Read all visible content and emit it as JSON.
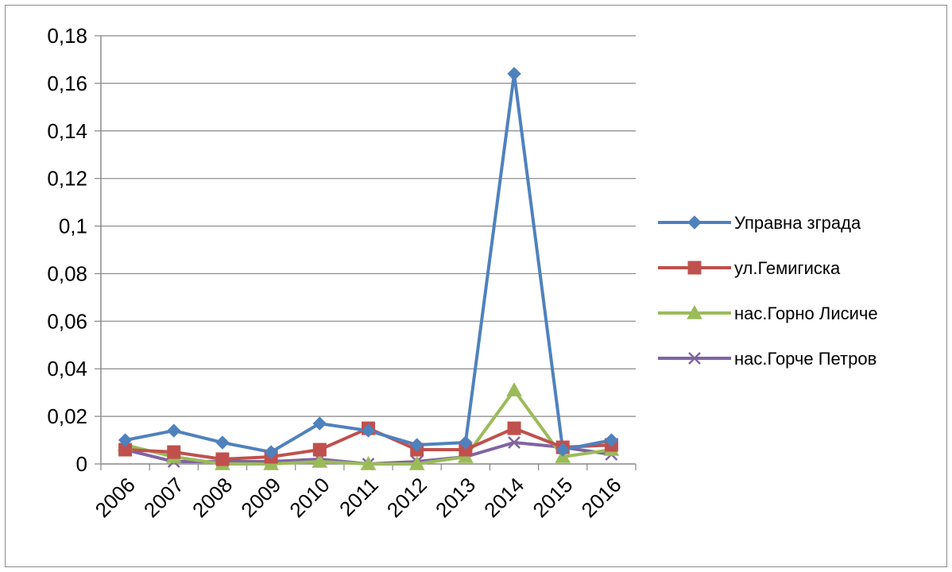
{
  "chart_data": {
    "type": "line",
    "categories": [
      "2006",
      "2007",
      "2008",
      "2009",
      "2010",
      "2011",
      "2012",
      "2013",
      "2014",
      "2015",
      "2016"
    ],
    "ylim": [
      0,
      0.18
    ],
    "yticks": [
      0,
      0.02,
      0.04,
      0.06,
      0.08,
      0.1,
      0.12,
      0.14,
      0.16,
      0.18
    ],
    "ytick_labels": [
      "0",
      "0,02",
      "0,04",
      "0,06",
      "0,08",
      "0,1",
      "0,12",
      "0,14",
      "0,16",
      "0,18"
    ],
    "grid": true,
    "legend_position": "right",
    "series": [
      {
        "name": "Управна зграда",
        "color": "#4f81bd",
        "marker": "diamond",
        "values": [
          0.01,
          0.014,
          0.009,
          0.005,
          0.017,
          0.014,
          0.008,
          0.009,
          0.164,
          0.006,
          0.01
        ]
      },
      {
        "name": "ул.Гемигиска",
        "color": "#c0504d",
        "marker": "square",
        "values": [
          0.006,
          0.005,
          0.002,
          0.003,
          0.006,
          0.015,
          0.006,
          0.006,
          0.015,
          0.007,
          0.008
        ]
      },
      {
        "name": "нас.Горно Лисиче",
        "color": "#9bbb59",
        "marker": "triangle",
        "values": [
          0.008,
          0.003,
          0.0,
          0.0,
          0.001,
          0.0,
          0.0,
          0.003,
          0.031,
          0.003,
          0.006
        ]
      },
      {
        "name": "нас.Горче Петров",
        "color": "#8064a2",
        "marker": "x",
        "values": [
          0.006,
          0.001,
          0.001,
          0.001,
          0.002,
          0.0,
          0.001,
          0.003,
          0.009,
          0.007,
          0.004
        ]
      }
    ]
  }
}
